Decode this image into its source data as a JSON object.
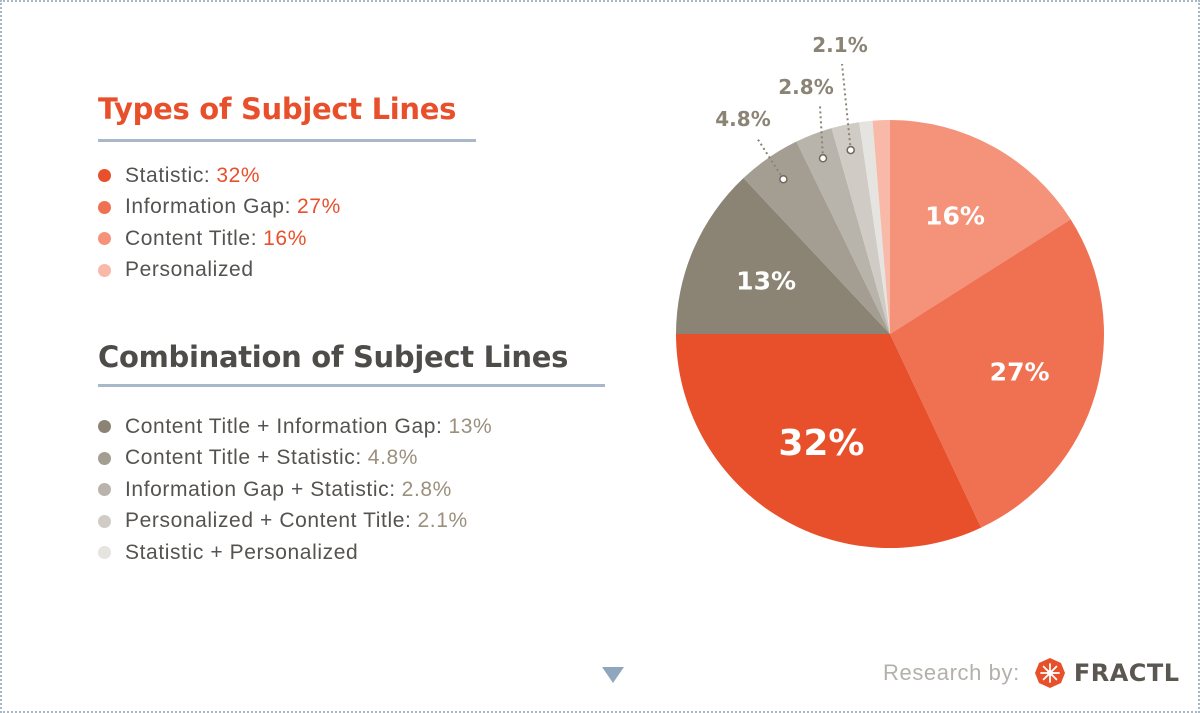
{
  "sections": {
    "types": {
      "title": "Types of Subject Lines",
      "items": [
        {
          "label": "Statistic:",
          "value": "32%",
          "color": "#e8502b"
        },
        {
          "label": "Information Gap:",
          "value": "27%",
          "color": "#f07152"
        },
        {
          "label": "Content Title:",
          "value": "16%",
          "color": "#f4937a"
        },
        {
          "label": "Personalized",
          "value": "",
          "color": "#f8b9a8"
        }
      ]
    },
    "combinations": {
      "title": "Combination of Subject Lines",
      "items": [
        {
          "label": "Content Title + Information Gap:",
          "value": "13%",
          "color": "#8b8475"
        },
        {
          "label": "Content Title + Statistic:",
          "value": "4.8%",
          "color": "#a49e92"
        },
        {
          "label": "Information Gap + Statistic:",
          "value": "2.8%",
          "color": "#b9b4ab"
        },
        {
          "label": "Personalized + Content Title:",
          "value": "2.1%",
          "color": "#d0ccc5"
        },
        {
          "label": "Statistic + Personalized",
          "value": "",
          "color": "#e6e4e0"
        }
      ]
    }
  },
  "chart_data": {
    "type": "pie",
    "start_angle_deg": 0,
    "direction": "clockwise",
    "slices": [
      {
        "label": "16%",
        "value": 16,
        "color": "#f4937a",
        "label_style": "inside"
      },
      {
        "label": "27%",
        "value": 27,
        "color": "#f07152",
        "label_style": "inside"
      },
      {
        "label": "32%",
        "value": 32,
        "color": "#e8502b",
        "label_style": "inside-large"
      },
      {
        "label": "13%",
        "value": 13,
        "color": "#8b8475",
        "label_style": "inside"
      },
      {
        "label": "4.8%",
        "value": 4.8,
        "color": "#a49e92",
        "label_style": "callout"
      },
      {
        "label": "2.8%",
        "value": 2.8,
        "color": "#b9b4ab",
        "label_style": "callout"
      },
      {
        "label": "2.1%",
        "value": 2.1,
        "color": "#d0ccc5",
        "label_style": "callout"
      },
      {
        "label": "",
        "value": 1.0,
        "color": "#e6e4e0",
        "label_style": "none"
      },
      {
        "label": "",
        "value": 1.3,
        "color": "#f8b9a8",
        "label_style": "none"
      }
    ]
  },
  "footer": {
    "credit_label": "Research by:",
    "brand": "FRACTL",
    "brand_color": "#e8502b"
  },
  "icons": {
    "scroll": "down-arrow-icon",
    "brand": "fractl-logo-icon"
  }
}
